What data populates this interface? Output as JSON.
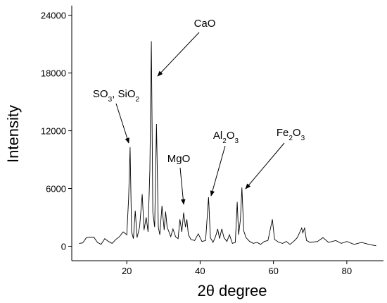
{
  "chart_data": {
    "type": "line",
    "x_label": "2θ degree",
    "y_label": "Intensity",
    "xlim": [
      5,
      90
    ],
    "ylim": [
      -1500,
      25000
    ],
    "xticks": [
      20,
      40,
      60,
      80
    ],
    "yticks": [
      0,
      6000,
      12000,
      18000,
      24000
    ],
    "annotations": [
      "SO3, SiO2",
      "CaO",
      "MgO",
      "Al2O3",
      "Fe2O3"
    ],
    "series": [
      {
        "color": "#000000",
        "x": [
          7,
          8,
          9,
          10,
          11,
          12,
          13,
          14,
          15,
          16,
          17,
          18,
          19,
          20,
          20.5,
          20.9,
          21.3,
          21.8,
          22.3,
          22.8,
          23.5,
          24.2,
          24.7,
          25.3,
          25.8,
          26.3,
          26.7,
          27.1,
          27.6,
          28.1,
          28.6,
          29.0,
          29.6,
          30.2,
          30.6,
          31.0,
          31.5,
          32.0,
          32.6,
          33.3,
          34.0,
          34.5,
          35.0,
          35.5,
          36.0,
          36.4,
          36.8,
          37.5,
          38.5,
          39.5,
          40.5,
          41.5,
          42.3,
          42.8,
          43.5,
          44.2,
          44.8,
          45.3,
          45.9,
          46.5,
          47.3,
          48.0,
          48.8,
          49.6,
          50.1,
          50.5,
          51.0,
          51.4,
          51.9,
          52.5,
          53.5,
          54.5,
          55.5,
          56.5,
          57.5,
          58.5,
          59.7,
          60.3,
          61.5,
          62.5,
          63.5,
          64.5,
          65.5,
          66.5,
          67.7,
          68.0,
          68.5,
          69.0,
          70,
          72,
          73.5,
          75,
          77,
          78.5,
          80,
          82,
          84,
          86,
          88
        ],
        "values": [
          300,
          350,
          900,
          950,
          950,
          400,
          200,
          800,
          500,
          300,
          700,
          1000,
          1500,
          1200,
          5000,
          10300,
          1500,
          800,
          3700,
          900,
          2000,
          5400,
          1700,
          3000,
          1500,
          8000,
          21300,
          3500,
          2000,
          12700,
          2000,
          1200,
          4200,
          1700,
          3600,
          2000,
          1500,
          1000,
          1800,
          1000,
          800,
          2800,
          1500,
          3500,
          2000,
          2800,
          1200,
          700,
          600,
          1300,
          500,
          600,
          5100,
          900,
          400,
          1000,
          1800,
          800,
          1800,
          900,
          500,
          1200,
          300,
          400,
          4600,
          1200,
          2800,
          6100,
          1600,
          900,
          500,
          300,
          400,
          200,
          500,
          600,
          2800,
          700,
          400,
          300,
          500,
          200,
          500,
          900,
          1900,
          1400,
          1900,
          600,
          400,
          500,
          900,
          400,
          600,
          300,
          500,
          200,
          400,
          200,
          50
        ]
      }
    ]
  }
}
